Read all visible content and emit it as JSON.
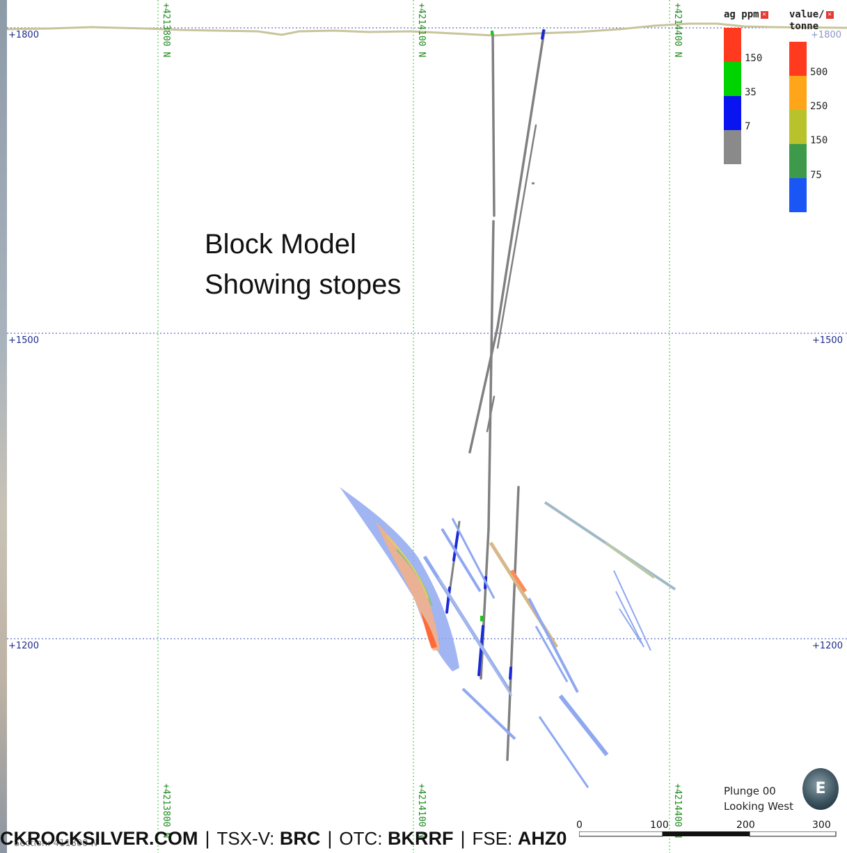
{
  "annotation": {
    "line1": "Block Model",
    "line2": "Showing stopes"
  },
  "elevations": [
    {
      "left": "+1800",
      "right": "+1800"
    },
    {
      "left": "+1500",
      "right": "+1500"
    },
    {
      "left": "+1200",
      "right": "+1200"
    }
  ],
  "northings": [
    "+4213800 N",
    "+4214100 N",
    "+4214400 N"
  ],
  "legend_ag": {
    "title": "ag ppm",
    "ticks": [
      "150",
      "35",
      "7"
    ],
    "colors": [
      "#ff3a1e",
      "#00d400",
      "#0a14f0",
      "#8a8a8a"
    ]
  },
  "legend_value": {
    "title_line1": "value/",
    "title_line2": "tonne",
    "ticks": [
      "500",
      "250",
      "150",
      "75"
    ],
    "colors": [
      "#ff3a1e",
      "#ffa51a",
      "#b8c22a",
      "#3c9a4a",
      "#1a55f5"
    ]
  },
  "orientation": {
    "plunge": "Plunge 00",
    "looking": "Looking West",
    "compass_letter": "E"
  },
  "scale": {
    "labels": [
      "0",
      "100",
      "200",
      "300"
    ]
  },
  "section_text": "Section: 411800 N",
  "footer": {
    "site": "CKROCKSILVER.COM",
    "tsx_label": "TSX-V:",
    "tsx_value": "BRC",
    "otc_label": "OTC:",
    "otc_value": "BKRRF",
    "fse_label": "FSE:",
    "fse_value": "AHZ0",
    "separator": "|"
  }
}
